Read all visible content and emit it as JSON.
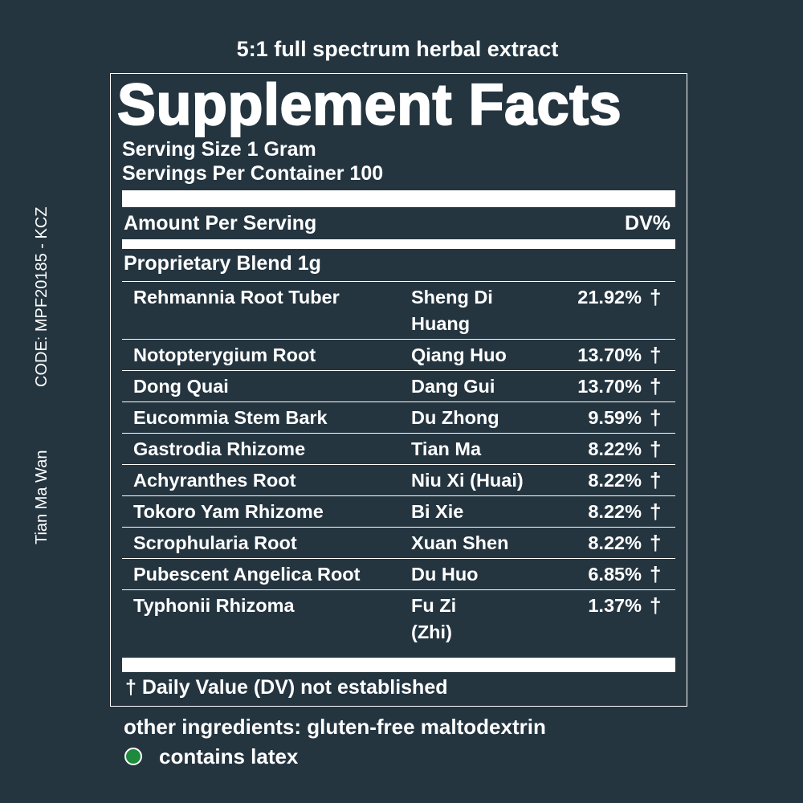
{
  "subtitle": "5:1 full spectrum herbal extract",
  "side": {
    "code": "CODE: MPF20185 - KCZ",
    "product": "Tian Ma Wan"
  },
  "label": {
    "title": "Supplement Facts",
    "serving_size": "Serving Size 1 Gram",
    "servings_per_container": "Servings Per Container 100",
    "amount_header": "Amount Per Serving",
    "dv_header": "DV%",
    "blend": "Proprietary Blend 1g",
    "rows": [
      {
        "name": "Rehmannia Root Tuber",
        "chinese": [
          "Sheng Di",
          "Huang"
        ],
        "dv": "21.92%",
        "mark": "†"
      },
      {
        "name": "Notopterygium Root",
        "chinese": [
          "Qiang Huo"
        ],
        "dv": "13.70%",
        "mark": "†"
      },
      {
        "name": "Dong Quai",
        "chinese": [
          "Dang Gui"
        ],
        "dv": "13.70%",
        "mark": "†"
      },
      {
        "name": "Eucommia Stem Bark",
        "chinese": [
          "Du Zhong"
        ],
        "dv": "9.59%",
        "mark": "†"
      },
      {
        "name": "Gastrodia Rhizome",
        "chinese": [
          "Tian Ma"
        ],
        "dv": "8.22%",
        "mark": "†"
      },
      {
        "name": "Achyranthes Root",
        "chinese": [
          "Niu Xi (Huai)"
        ],
        "dv": "8.22%",
        "mark": "†"
      },
      {
        "name": "Tokoro Yam Rhizome",
        "chinese": [
          "Bi Xie"
        ],
        "dv": "8.22%",
        "mark": "†"
      },
      {
        "name": "Scrophularia Root",
        "chinese": [
          "Xuan Shen"
        ],
        "dv": "8.22%",
        "mark": "†"
      },
      {
        "name": "Pubescent Angelica Root",
        "chinese": [
          "Du Huo"
        ],
        "dv": "6.85%",
        "mark": "†"
      },
      {
        "name": "Typhonii Rhizoma",
        "chinese": [
          "Fu Zi",
          "(Zhi)"
        ],
        "dv": "1.37%",
        "mark": "†"
      }
    ],
    "footnote": "† Daily Value (DV) not established"
  },
  "other_ingredients": "other ingredients: gluten-free maltodextrin",
  "latex": "contains latex"
}
